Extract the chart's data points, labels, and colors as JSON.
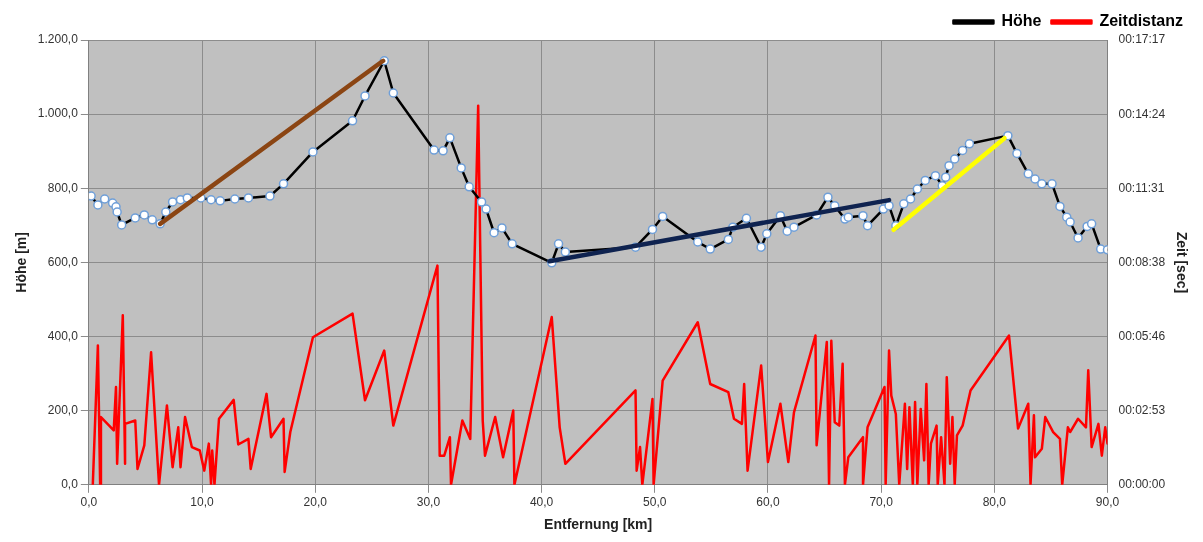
{
  "chart_data": {
    "type": "line",
    "xlabel": "Entfernung [km]",
    "ylabel": "Höhe [m]",
    "y2label": "Zeit [sec]",
    "xlim": [
      0,
      90
    ],
    "xticks": [
      {
        "value": 0,
        "label": "0,0"
      },
      {
        "value": 10,
        "label": "10,0"
      },
      {
        "value": 20,
        "label": "20,0"
      },
      {
        "value": 30,
        "label": "30,0"
      },
      {
        "value": 40,
        "label": "40,0"
      },
      {
        "value": 50,
        "label": "50,0"
      },
      {
        "value": 60,
        "label": "60,0"
      },
      {
        "value": 70,
        "label": "70,0"
      },
      {
        "value": 80,
        "label": "80,0"
      },
      {
        "value": 90,
        "label": "90,0"
      }
    ],
    "ylim": [
      0,
      1200
    ],
    "yticks": [
      {
        "value": 0,
        "label": "0,0"
      },
      {
        "value": 200,
        "label": "200,0"
      },
      {
        "value": 400,
        "label": "400,0"
      },
      {
        "value": 600,
        "label": "600,0"
      },
      {
        "value": 800,
        "label": "800,0"
      },
      {
        "value": 1000,
        "label": "1.000,0"
      },
      {
        "value": 1200,
        "label": "1.200,0"
      }
    ],
    "y2lim": [
      0,
      1037
    ],
    "y2ticks": [
      {
        "value": 0,
        "label": "00:00:00"
      },
      {
        "value": 173,
        "label": "00:02:53"
      },
      {
        "value": 346,
        "label": "00:05:46"
      },
      {
        "value": 518,
        "label": "00:08:38"
      },
      {
        "value": 691,
        "label": "00:11:31"
      },
      {
        "value": 864,
        "label": "00:14:24"
      },
      {
        "value": 1037,
        "label": "00:17:17"
      }
    ],
    "grid": true,
    "legend": "top right",
    "series": [
      {
        "name": "Höhe",
        "type": "line",
        "color": "#000000",
        "marker": "circle",
        "x": [
          0.2,
          0.8,
          1.4,
          2.1,
          2.4,
          2.5,
          2.9,
          4.1,
          4.9,
          5.6,
          6.3,
          6.8,
          7.4,
          8.1,
          8.7,
          9.9,
          10.8,
          11.6,
          12.9,
          14.1,
          16.0,
          17.2,
          19.8,
          23.3,
          24.4,
          26.1,
          26.9,
          30.5,
          31.3,
          31.9,
          32.9,
          33.6,
          34.7,
          35.1,
          35.8,
          36.5,
          37.4,
          40.9,
          41.5,
          42.1,
          48.3,
          49.8,
          50.7,
          53.8,
          54.9,
          56.5,
          56.9,
          58.1,
          59.4,
          59.9,
          61.1,
          61.7,
          62.3,
          64.3,
          65.3,
          65.9,
          66.8,
          67.1,
          68.4,
          68.8,
          70.2,
          70.7,
          71.3,
          72.0,
          72.6,
          73.2,
          73.9,
          74.8,
          75.4,
          75.7,
          76.0,
          76.5,
          77.2,
          77.8,
          81.2,
          82.0,
          83.0,
          83.6,
          84.2,
          85.1,
          85.8,
          86.4,
          86.7,
          87.4,
          88.2,
          88.6,
          89.4,
          90.0
        ],
        "values": [
          779,
          755,
          771,
          760,
          750,
          736,
          701,
          720,
          728,
          715,
          704,
          736,
          763,
          769,
          774,
          774,
          769,
          766,
          771,
          774,
          779,
          812,
          898,
          982,
          1049,
          1144,
          1057,
          903,
          901,
          936,
          855,
          804,
          763,
          744,
          680,
          693,
          650,
          599,
          650,
          628,
          641,
          689,
          724,
          655,
          636,
          662,
          695,
          719,
          641,
          677,
          726,
          684,
          695,
          728,
          776,
          753,
          717,
          722,
          726,
          699,
          744,
          753,
          699,
          758,
          771,
          798,
          821,
          834,
          807,
          830,
          861,
          879,
          902,
          920,
          942,
          894,
          839,
          825,
          812,
          812,
          751,
          722,
          709,
          666,
          697,
          704,
          636,
          634
        ]
      },
      {
        "name": "Zeitdistanz",
        "type": "line",
        "color": "#ff0000",
        "axis": "y2",
        "x": [
          0.35,
          0.8,
          1.0,
          1.07,
          2.2,
          2.4,
          2.5,
          3.0,
          3.2,
          3.2,
          4.1,
          4.3,
          4.9,
          5.5,
          6.2,
          6.9,
          7.4,
          7.9,
          8.1,
          8.5,
          9.1,
          9.8,
          10.2,
          10.6,
          10.8,
          10.9,
          11.1,
          11.5,
          12.8,
          13.2,
          14.1,
          14.3,
          15.7,
          16.1,
          17.2,
          17.3,
          17.8,
          19.8,
          23.3,
          24.4,
          26.1,
          26.9,
          30.8,
          31.0,
          31.4,
          31.9,
          32.0,
          33.0,
          33.7,
          34.4,
          34.8,
          35.0,
          35.9,
          36.6,
          37.5,
          37.6,
          40.9,
          41.6,
          42.1,
          48.3,
          48.4,
          48.7,
          48.9,
          49.8,
          49.9,
          50.7,
          53.8,
          54.9,
          56.5,
          57.0,
          57.7,
          57.9,
          58.2,
          59.4,
          60.0,
          61.1,
          61.8,
          62.3,
          64.2,
          64.3,
          65.2,
          65.4,
          65.6,
          65.9,
          66.3,
          66.6,
          66.8,
          67.1,
          68.4,
          68.4,
          68.8,
          70.3,
          70.4,
          70.7,
          70.9,
          71.3,
          71.6,
          72.1,
          72.3,
          72.5,
          72.8,
          73.0,
          73.2,
          73.5,
          73.8,
          74.0,
          74.2,
          74.4,
          74.9,
          75.0,
          75.3,
          75.6,
          75.8,
          76.1,
          76.3,
          76.5,
          76.7,
          77.2,
          77.9,
          81.3,
          82.1,
          83.0,
          83.2,
          83.5,
          83.6,
          84.2,
          84.5,
          85.2,
          85.8,
          86.0,
          86.5,
          86.7,
          87.4,
          88.1,
          88.3,
          88.6,
          89.2,
          89.5,
          89.8,
          90.0
        ],
        "values": [
          0,
          325,
          0,
          158,
          127,
          228,
          49,
          395,
          49,
          142,
          150,
          37,
          92,
          309,
          0,
          185,
          41,
          134,
          41,
          158,
          88,
          80,
          33,
          96,
          0,
          80,
          0,
          154,
          198,
          94,
          107,
          37,
          212,
          111,
          154,
          30,
          123,
          344,
          399,
          197,
          313,
          138,
          511,
          68,
          68,
          111,
          0,
          150,
          107,
          884,
          150,
          68,
          158,
          64,
          173,
          0,
          391,
          134,
          49,
          220,
          33,
          88,
          0,
          200,
          0,
          243,
          379,
          235,
          216,
          154,
          142,
          235,
          33,
          278,
          53,
          189,
          53,
          169,
          348,
          92,
          333,
          0,
          336,
          146,
          138,
          282,
          0,
          64,
          111,
          0,
          134,
          228,
          0,
          313,
          208,
          165,
          0,
          189,
          37,
          181,
          0,
          193,
          0,
          177,
          57,
          235,
          0,
          96,
          138,
          0,
          111,
          0,
          251,
          49,
          158,
          0,
          115,
          138,
          220,
          348,
          131,
          189,
          0,
          162,
          64,
          84,
          158,
          123,
          107,
          0,
          134,
          123,
          154,
          134,
          267,
          88,
          142,
          68,
          134,
          96
        ]
      },
      {
        "type": "line",
        "color": "#8b4513",
        "x": [
          6.3,
          26.0
        ],
        "values": [
          704,
          1144
        ]
      },
      {
        "type": "line",
        "color": "#0f2350",
        "x": [
          40.7,
          70.7
        ],
        "values": [
          603,
          768
        ]
      },
      {
        "type": "line",
        "color": "#ffff00",
        "x": [
          71.1,
          80.9
        ],
        "values": [
          688,
          935
        ]
      }
    ]
  }
}
